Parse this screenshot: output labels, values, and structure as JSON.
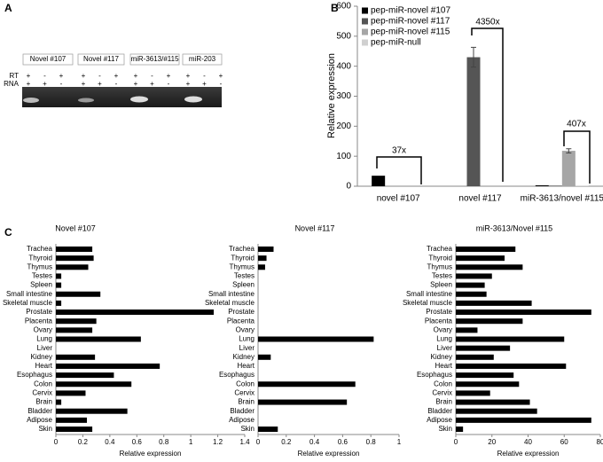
{
  "panel_labels": [
    "A",
    "B",
    "C"
  ],
  "gel": {
    "lanes": [
      "Novel #107",
      "Novel #117",
      "miR-3613/#115",
      "miR-203"
    ],
    "rows": [
      {
        "label": "RT",
        "signs": [
          "+",
          "-",
          "+",
          "+",
          "-",
          "+",
          "+",
          "-",
          "+",
          "+",
          "-",
          "+"
        ]
      },
      {
        "label": "RNA",
        "signs": [
          "+",
          "+",
          "-",
          "+",
          "+",
          "-",
          "+",
          "+",
          "-",
          "+",
          "+",
          "-"
        ]
      }
    ]
  },
  "chart_data": [
    {
      "type": "bar",
      "ylabel": "Relative expression",
      "categories": [
        "novel #107",
        "novel #117",
        "miR-3613/novel #115"
      ],
      "series": [
        {
          "name": "pep-miR-novel #107",
          "color": "#000000",
          "values": [
            35,
            0,
            3
          ]
        },
        {
          "name": "pep-miR-novel #117",
          "color": "#555555",
          "values": [
            0,
            430,
            2
          ],
          "errors": [
            null,
            33,
            null
          ]
        },
        {
          "name": "pep-miR-novel #115",
          "color": "#a6a6a6",
          "values": [
            0,
            0,
            118
          ],
          "errors": [
            null,
            null,
            7
          ]
        },
        {
          "name": "pep-miR-null",
          "color": "#d0d0d0",
          "values": [
            0,
            0,
            2
          ]
        }
      ],
      "ylim": [
        0,
        600
      ],
      "yticks": [
        0,
        100,
        200,
        300,
        400,
        500,
        600
      ],
      "annotations": [
        "37x",
        "4350x",
        "407x"
      ]
    },
    {
      "type": "hbar",
      "title": "Novel #107",
      "xlabel": "Relative expression",
      "color": "#000000",
      "categories": [
        "Trachea",
        "Thyroid",
        "Thymus",
        "Testes",
        "Spleen",
        "Small intestine",
        "Skeletal muscle",
        "Prostate",
        "Placenta",
        "Ovary",
        "Lung",
        "Liver",
        "Kidney",
        "Heart",
        "Esophagus",
        "Colon",
        "Cervix",
        "Brain",
        "Bladder",
        "Adipose",
        "Skin"
      ],
      "values": [
        0.27,
        0.28,
        0.24,
        0.04,
        0.04,
        0.33,
        0.04,
        1.17,
        0.3,
        0.27,
        0.63,
        0,
        0.29,
        0.77,
        0.43,
        0.56,
        0.22,
        0.04,
        0.53,
        0.23,
        0.27
      ],
      "xlim": [
        0,
        1.4
      ],
      "xticks": [
        0,
        0.2,
        0.4,
        0.6,
        0.8,
        1,
        1.2,
        1.4
      ]
    },
    {
      "type": "hbar",
      "title": "Novel #117",
      "xlabel": "Relative expression",
      "color": "#000000",
      "categories": [
        "Trachea",
        "Thyroid",
        "Thymus",
        "Testes",
        "Spleen",
        "Small intestine",
        "Skeletal muscle",
        "Prostate",
        "Placenta",
        "Ovary",
        "Lung",
        "Liver",
        "Kidney",
        "Heart",
        "Esophagus",
        "Colon",
        "Cervix",
        "Brain",
        "Bladder",
        "Adipose",
        "Skin"
      ],
      "values": [
        0.11,
        0.06,
        0.05,
        0,
        0,
        0,
        0,
        0,
        0,
        0,
        0.82,
        0,
        0.09,
        0,
        0,
        0.69,
        0,
        0.63,
        0,
        0,
        0.14
      ],
      "xlim": [
        0,
        1
      ],
      "xticks": [
        0,
        0.2,
        0.4,
        0.6,
        0.8,
        1
      ]
    },
    {
      "type": "hbar",
      "title": "miR-3613/Novel #115",
      "xlabel": "Relative expression",
      "color": "#000000",
      "categories": [
        "Trachea",
        "Thyroid",
        "Thymus",
        "Testes",
        "Spleen",
        "Small intestine",
        "Skeletal muscle",
        "Prostate",
        "Placenta",
        "Ovary",
        "Lung",
        "Liver",
        "Kidney",
        "Heart",
        "Esophagus",
        "Colon",
        "Cervix",
        "Brain",
        "Bladder",
        "Adipose",
        "Skin"
      ],
      "values": [
        33,
        27,
        37,
        20,
        16,
        17,
        42,
        75,
        37,
        12,
        60,
        30,
        21,
        61,
        32,
        35,
        19,
        41,
        45,
        75,
        4
      ],
      "xlim": [
        0,
        80
      ],
      "xticks": [
        0,
        20,
        40,
        60,
        80
      ]
    }
  ]
}
